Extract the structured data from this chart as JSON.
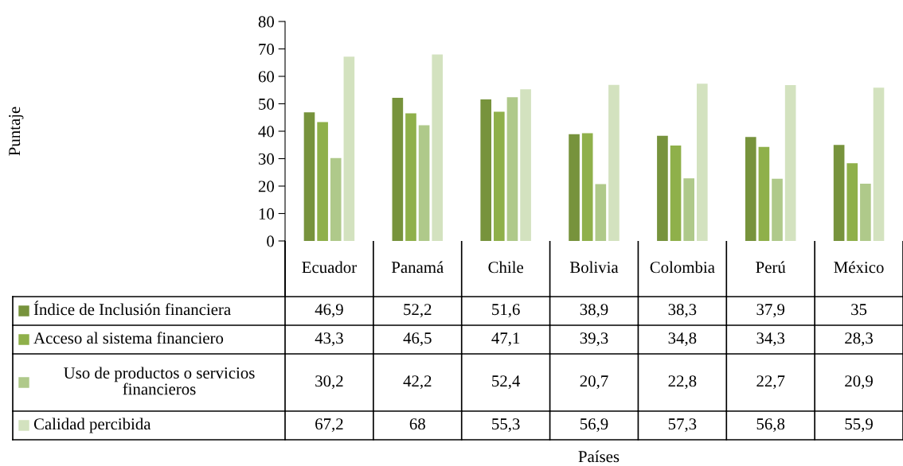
{
  "chart_data": {
    "type": "bar",
    "annotations": [
      "Puntaje",
      "Países"
    ],
    "categories": [
      "Ecuador",
      "Panamá",
      "Chile",
      "Bolivia",
      "Colombia",
      "Perú",
      "México"
    ],
    "series": [
      {
        "name": "Índice de Inclusión financiera",
        "color": "#77933c",
        "values": [
          46.9,
          52.2,
          51.6,
          38.9,
          38.3,
          37.9,
          35
        ],
        "value_labels": [
          "46,9",
          "52,2",
          "51,6",
          "38,9",
          "38,3",
          "37,9",
          "35"
        ]
      },
      {
        "name": "Acceso al sistema financiero",
        "color": "#8fb04a",
        "values": [
          43.3,
          46.5,
          47.1,
          39.3,
          34.8,
          34.3,
          28.3
        ],
        "value_labels": [
          "43,3",
          "46,5",
          "47,1",
          "39,3",
          "34,8",
          "34,3",
          "28,3"
        ]
      },
      {
        "name": "Uso de productos o servicios financieros",
        "color": "#afc98a",
        "values": [
          30.2,
          42.2,
          52.4,
          20.7,
          22.8,
          22.7,
          20.9
        ],
        "value_labels": [
          "30,2",
          "42,2",
          "52,4",
          "20,7",
          "22,8",
          "22,7",
          "20,9"
        ]
      },
      {
        "name": "Calidad percibida",
        "color": "#d3e2bf",
        "values": [
          67.2,
          68,
          55.3,
          56.9,
          57.3,
          56.8,
          55.9
        ],
        "value_labels": [
          "67,2",
          "68",
          "55,3",
          "56,9",
          "57,3",
          "56,8",
          "55,9"
        ]
      }
    ],
    "ylim": [
      0,
      80
    ],
    "yticks": [
      0,
      10,
      20,
      30,
      40,
      50,
      60,
      70,
      80
    ],
    "grid": false,
    "legend": "bottom"
  }
}
